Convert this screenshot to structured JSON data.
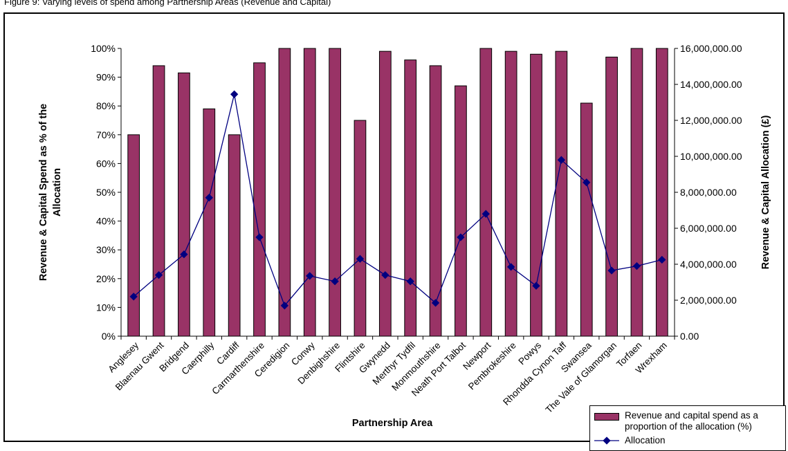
{
  "caption": "Figure 9: Varying levels of spend among Partnership Areas (Revenue and Capital)",
  "chart_data": {
    "type": "bar",
    "title": "",
    "xlabel": "Partnership Area",
    "ylabel_left": "Revenue & Capital Spend as % of the Allocation",
    "ylabel_right": "Revenue & Capital Allocation (£)",
    "ylim_left": [
      0,
      100
    ],
    "ylim_right": [
      0,
      16000000
    ],
    "yticks_left": [
      "0%",
      "10%",
      "20%",
      "30%",
      "40%",
      "50%",
      "60%",
      "70%",
      "80%",
      "90%",
      "100%"
    ],
    "yticks_right": [
      "0.00",
      "2,000,000.00",
      "4,000,000.00",
      "6,000,000.00",
      "8,000,000.00",
      "10,000,000.00",
      "12,000,000.00",
      "14,000,000.00",
      "16,000,000.00"
    ],
    "grid": false,
    "legend_position": "bottom-right",
    "colors": {
      "bar": "#993366",
      "line": "#000080"
    },
    "categories": [
      "Anglesey",
      "Blaenau Gwent",
      "Bridgend",
      "Caerphilly",
      "Cardiff",
      "Carmarthenshire",
      "Ceredigion",
      "Conwy",
      "Denbighshire",
      "Flintshire",
      "Gwynedd",
      "Merthyr Tydfil",
      "Monmouthshire",
      "Neath Port Talbot",
      "Newport",
      "Pembrokeshire",
      "Powys",
      "Rhondda Cynon Taff",
      "Swansea",
      "The Vale of Glamorgan",
      "Torfaen",
      "Wrexham"
    ],
    "series": [
      {
        "name": "Revenue and capital spend as a proportion of the allocation (%)",
        "type": "bar",
        "axis": "left",
        "values": [
          70,
          94,
          91.5,
          79,
          70,
          95,
          100,
          100,
          100,
          75,
          99,
          96,
          94,
          87,
          100,
          99,
          98,
          99,
          81,
          97,
          100,
          100
        ]
      },
      {
        "name": "Allocation",
        "type": "line",
        "axis": "right",
        "values": [
          2200000,
          3400000,
          4550000,
          7700000,
          13450000,
          5500000,
          1700000,
          3350000,
          3050000,
          4300000,
          3400000,
          3050000,
          1850000,
          5500000,
          6800000,
          3850000,
          2800000,
          9800000,
          8550000,
          3650000,
          3900000,
          4250000
        ]
      }
    ]
  }
}
